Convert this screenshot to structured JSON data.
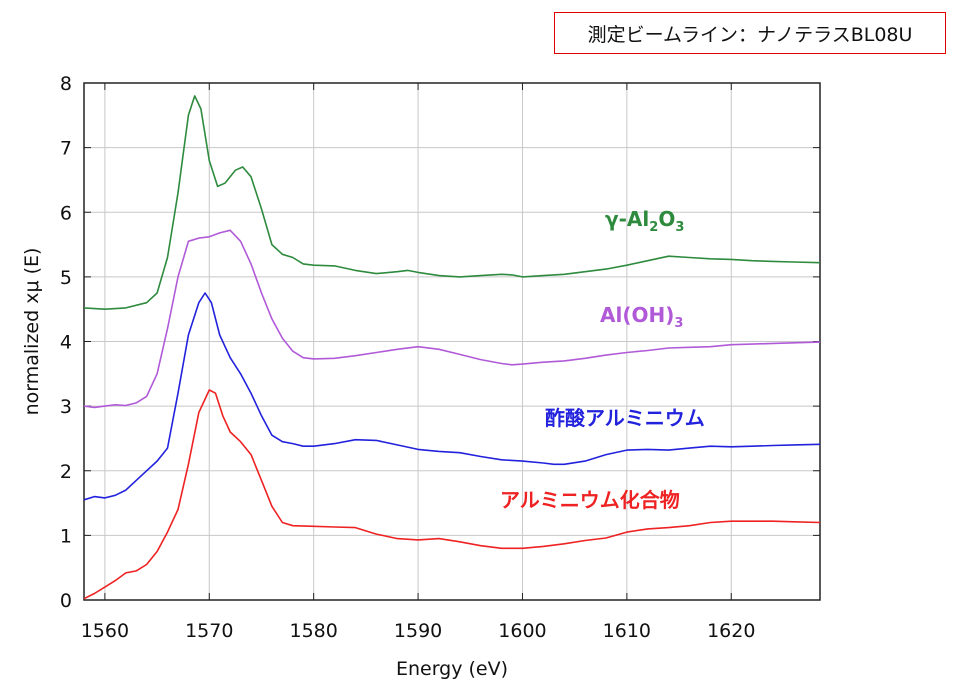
{
  "beamline_label": "測定ビームライン：ナノテラスBL08U",
  "chart_data": {
    "type": "line",
    "xlabel": "Energy (eV)",
    "ylabel": "normalized xμ (E)",
    "xlim": [
      1558,
      1628.5
    ],
    "ylim": [
      0,
      8
    ],
    "x_ticks": [
      1560,
      1570,
      1580,
      1590,
      1600,
      1610,
      1620
    ],
    "y_ticks": [
      0,
      1,
      2,
      3,
      4,
      5,
      6,
      7,
      8
    ],
    "grid": true,
    "series": [
      {
        "name_parts": [
          "γ-Al",
          "2",
          "O",
          "3"
        ],
        "color": "#2e8b3e",
        "points": [
          [
            1558,
            4.52
          ],
          [
            1560,
            4.5
          ],
          [
            1562,
            4.52
          ],
          [
            1564,
            4.6
          ],
          [
            1565,
            4.75
          ],
          [
            1566,
            5.3
          ],
          [
            1567,
            6.3
          ],
          [
            1568,
            7.5
          ],
          [
            1568.6,
            7.8
          ],
          [
            1569.2,
            7.6
          ],
          [
            1570,
            6.8
          ],
          [
            1570.8,
            6.4
          ],
          [
            1571.5,
            6.45
          ],
          [
            1572.5,
            6.65
          ],
          [
            1573.2,
            6.7
          ],
          [
            1574,
            6.55
          ],
          [
            1575,
            6.05
          ],
          [
            1576,
            5.5
          ],
          [
            1577,
            5.35
          ],
          [
            1578,
            5.3
          ],
          [
            1579,
            5.2
          ],
          [
            1580,
            5.18
          ],
          [
            1582,
            5.17
          ],
          [
            1584,
            5.1
          ],
          [
            1586,
            5.05
          ],
          [
            1588,
            5.08
          ],
          [
            1589,
            5.1
          ],
          [
            1590,
            5.07
          ],
          [
            1592,
            5.02
          ],
          [
            1594,
            5.0
          ],
          [
            1596,
            5.02
          ],
          [
            1598,
            5.04
          ],
          [
            1599,
            5.03
          ],
          [
            1600,
            5.0
          ],
          [
            1602,
            5.02
          ],
          [
            1604,
            5.04
          ],
          [
            1606,
            5.08
          ],
          [
            1608,
            5.12
          ],
          [
            1610,
            5.18
          ],
          [
            1612,
            5.25
          ],
          [
            1614,
            5.32
          ],
          [
            1616,
            5.3
          ],
          [
            1618,
            5.28
          ],
          [
            1620,
            5.27
          ],
          [
            1622,
            5.25
          ],
          [
            1624,
            5.24
          ],
          [
            1626,
            5.23
          ],
          [
            1628.5,
            5.22
          ]
        ]
      },
      {
        "name_parts": [
          "Al(OH)",
          "3"
        ],
        "color": "#b05ad8",
        "points": [
          [
            1558,
            3.0
          ],
          [
            1559,
            2.98
          ],
          [
            1560,
            3.0
          ],
          [
            1561,
            3.02
          ],
          [
            1562,
            3.01
          ],
          [
            1563,
            3.05
          ],
          [
            1564,
            3.15
          ],
          [
            1565,
            3.5
          ],
          [
            1566,
            4.2
          ],
          [
            1567,
            5.0
          ],
          [
            1568,
            5.55
          ],
          [
            1569,
            5.6
          ],
          [
            1570,
            5.62
          ],
          [
            1571,
            5.68
          ],
          [
            1572,
            5.72
          ],
          [
            1573,
            5.55
          ],
          [
            1574,
            5.2
          ],
          [
            1575,
            4.75
          ],
          [
            1576,
            4.35
          ],
          [
            1577,
            4.05
          ],
          [
            1578,
            3.85
          ],
          [
            1579,
            3.75
          ],
          [
            1580,
            3.73
          ],
          [
            1582,
            3.74
          ],
          [
            1584,
            3.78
          ],
          [
            1586,
            3.83
          ],
          [
            1588,
            3.88
          ],
          [
            1590,
            3.92
          ],
          [
            1592,
            3.88
          ],
          [
            1594,
            3.8
          ],
          [
            1596,
            3.72
          ],
          [
            1598,
            3.66
          ],
          [
            1599,
            3.64
          ],
          [
            1600,
            3.65
          ],
          [
            1602,
            3.68
          ],
          [
            1604,
            3.7
          ],
          [
            1606,
            3.74
          ],
          [
            1608,
            3.79
          ],
          [
            1610,
            3.83
          ],
          [
            1612,
            3.86
          ],
          [
            1614,
            3.9
          ],
          [
            1616,
            3.91
          ],
          [
            1618,
            3.92
          ],
          [
            1620,
            3.95
          ],
          [
            1622,
            3.96
          ],
          [
            1624,
            3.97
          ],
          [
            1626,
            3.98
          ],
          [
            1628.5,
            3.99
          ]
        ]
      },
      {
        "name_parts": [
          "酢酸アルミニウム"
        ],
        "color": "#2222dd",
        "points": [
          [
            1558,
            1.55
          ],
          [
            1559,
            1.6
          ],
          [
            1560,
            1.58
          ],
          [
            1561,
            1.62
          ],
          [
            1562,
            1.7
          ],
          [
            1563,
            1.85
          ],
          [
            1564,
            2.0
          ],
          [
            1565,
            2.15
          ],
          [
            1566,
            2.35
          ],
          [
            1567,
            3.2
          ],
          [
            1568,
            4.1
          ],
          [
            1569,
            4.6
          ],
          [
            1569.6,
            4.75
          ],
          [
            1570.2,
            4.6
          ],
          [
            1571,
            4.1
          ],
          [
            1572,
            3.75
          ],
          [
            1573,
            3.5
          ],
          [
            1574,
            3.2
          ],
          [
            1575,
            2.85
          ],
          [
            1576,
            2.55
          ],
          [
            1577,
            2.45
          ],
          [
            1578,
            2.42
          ],
          [
            1579,
            2.38
          ],
          [
            1580,
            2.38
          ],
          [
            1582,
            2.42
          ],
          [
            1584,
            2.48
          ],
          [
            1586,
            2.47
          ],
          [
            1588,
            2.4
          ],
          [
            1590,
            2.33
          ],
          [
            1592,
            2.3
          ],
          [
            1594,
            2.28
          ],
          [
            1596,
            2.22
          ],
          [
            1598,
            2.17
          ],
          [
            1600,
            2.15
          ],
          [
            1602,
            2.12
          ],
          [
            1603,
            2.1
          ],
          [
            1604,
            2.1
          ],
          [
            1606,
            2.15
          ],
          [
            1608,
            2.25
          ],
          [
            1610,
            2.32
          ],
          [
            1612,
            2.33
          ],
          [
            1614,
            2.32
          ],
          [
            1616,
            2.35
          ],
          [
            1618,
            2.38
          ],
          [
            1620,
            2.37
          ],
          [
            1622,
            2.38
          ],
          [
            1624,
            2.39
          ],
          [
            1626,
            2.4
          ],
          [
            1628.5,
            2.41
          ]
        ]
      },
      {
        "name_parts": [
          "アルミニウム化合物"
        ],
        "color": "#ee2222",
        "points": [
          [
            1558,
            0.02
          ],
          [
            1559,
            0.1
          ],
          [
            1560,
            0.2
          ],
          [
            1561,
            0.3
          ],
          [
            1562,
            0.42
          ],
          [
            1563,
            0.45
          ],
          [
            1564,
            0.55
          ],
          [
            1565,
            0.75
          ],
          [
            1566,
            1.05
          ],
          [
            1567,
            1.4
          ],
          [
            1568,
            2.1
          ],
          [
            1569,
            2.9
          ],
          [
            1570,
            3.25
          ],
          [
            1570.6,
            3.2
          ],
          [
            1571.3,
            2.85
          ],
          [
            1572,
            2.6
          ],
          [
            1573,
            2.45
          ],
          [
            1574,
            2.25
          ],
          [
            1575,
            1.85
          ],
          [
            1576,
            1.45
          ],
          [
            1577,
            1.2
          ],
          [
            1578,
            1.15
          ],
          [
            1580,
            1.14
          ],
          [
            1582,
            1.13
          ],
          [
            1584,
            1.12
          ],
          [
            1586,
            1.02
          ],
          [
            1588,
            0.95
          ],
          [
            1590,
            0.93
          ],
          [
            1592,
            0.95
          ],
          [
            1594,
            0.9
          ],
          [
            1596,
            0.84
          ],
          [
            1598,
            0.8
          ],
          [
            1600,
            0.8
          ],
          [
            1602,
            0.83
          ],
          [
            1604,
            0.87
          ],
          [
            1606,
            0.92
          ],
          [
            1608,
            0.96
          ],
          [
            1610,
            1.05
          ],
          [
            1612,
            1.1
          ],
          [
            1614,
            1.12
          ],
          [
            1616,
            1.15
          ],
          [
            1618,
            1.2
          ],
          [
            1620,
            1.22
          ],
          [
            1622,
            1.22
          ],
          [
            1624,
            1.22
          ],
          [
            1626,
            1.21
          ],
          [
            1628.5,
            1.2
          ]
        ]
      }
    ]
  }
}
